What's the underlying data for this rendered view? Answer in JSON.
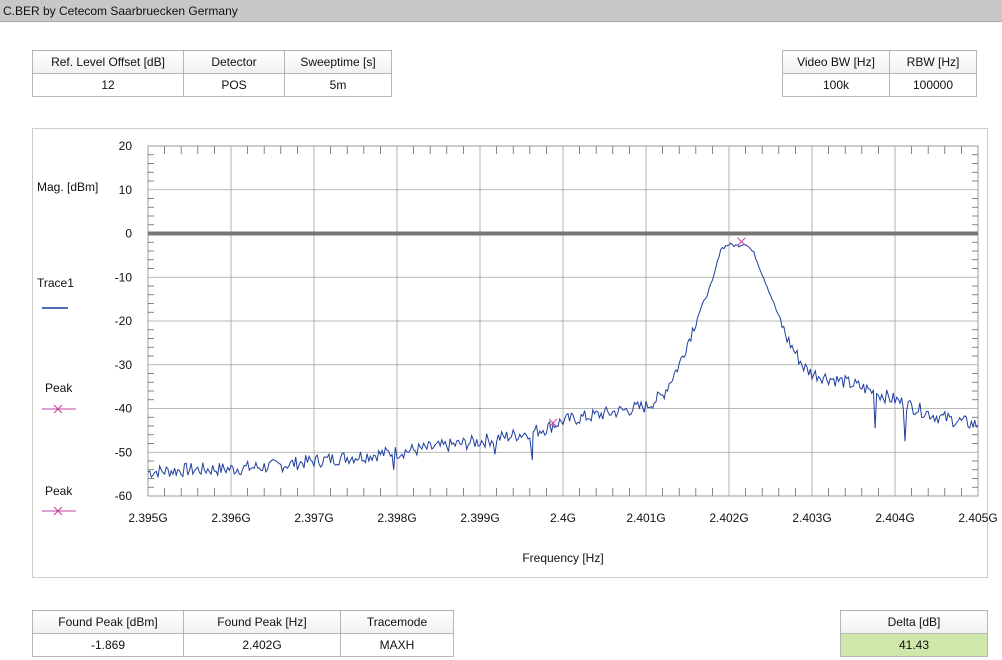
{
  "window": {
    "title": "C.BER by Cetecom Saarbruecken Germany"
  },
  "top_params_left": {
    "headers": [
      "Ref. Level Offset [dB]",
      "Detector",
      "Sweeptime [s]"
    ],
    "values": [
      "12",
      "POS",
      "5m"
    ]
  },
  "top_params_right": {
    "headers": [
      "Video BW [Hz]",
      "RBW [Hz]"
    ],
    "values": [
      "100k",
      "100000"
    ]
  },
  "bottom_params": {
    "headers": [
      "Found Peak [dBm]",
      "Found Peak [Hz]",
      "Tracemode"
    ],
    "values": [
      "-1.869",
      "2.402G",
      "MAXH"
    ]
  },
  "delta": {
    "header": "Delta [dB]",
    "value": "41.43",
    "color": "#cfe7a8"
  },
  "legend": {
    "trace1": "Trace1",
    "peak1": "Peak",
    "peak2": "Peak"
  },
  "colors": {
    "trace": "#1f3f9f",
    "peak_marker": "#c040a0",
    "ref_line": "#777777",
    "grid": "#a0a0a0"
  },
  "chart_data": {
    "type": "line",
    "xlabel": "Frequency [Hz]",
    "ylabel": "Mag. [dBm]",
    "xlim": [
      2.395,
      2.405
    ],
    "ylim": [
      -60,
      20
    ],
    "x_ticks": [
      2.395,
      2.396,
      2.397,
      2.398,
      2.399,
      2.4,
      2.401,
      2.402,
      2.403,
      2.404,
      2.405
    ],
    "x_tick_labels": [
      "2.395G",
      "2.396G",
      "2.397G",
      "2.398G",
      "2.399G",
      "2.4G",
      "2.401G",
      "2.402G",
      "2.403G",
      "2.404G",
      "2.405G"
    ],
    "y_ticks": [
      20,
      10,
      0,
      -10,
      -20,
      -30,
      -40,
      -50,
      -60
    ],
    "y_tick_labels": [
      "20",
      "10",
      "0",
      "-10",
      "-20",
      "-30",
      "-40",
      "-50",
      "-60"
    ],
    "grid": true,
    "reference_line": {
      "y": 0
    },
    "series": [
      {
        "name": "Trace1",
        "x": [
          2.395,
          2.3955,
          2.396,
          2.3965,
          2.397,
          2.3975,
          2.398,
          2.3985,
          2.399,
          2.3995,
          2.3998,
          2.4,
          2.4005,
          2.401,
          2.4012,
          2.4014,
          2.4016,
          2.4018,
          2.4019,
          2.402,
          2.4021,
          2.4022,
          2.4023,
          2.4025,
          2.4027,
          2.4029,
          2.403,
          2.4035,
          2.404,
          2.4045,
          2.405
        ],
        "y": [
          -54.5,
          -54,
          -53.8,
          -53.2,
          -52,
          -51,
          -50,
          -48.8,
          -47.5,
          -45.8,
          -44.5,
          -42.8,
          -41.2,
          -39.5,
          -37,
          -30,
          -20,
          -11,
          -3.5,
          -2.5,
          -2.8,
          -2.2,
          -4.5,
          -14,
          -24,
          -30.5,
          -32,
          -34.5,
          -38,
          -41.8,
          -43.8
        ]
      }
    ],
    "dips": [
      {
        "x": 2.39796,
        "y": -54
      },
      {
        "x": 2.39918,
        "y": -50.5
      },
      {
        "x": 2.39963,
        "y": -51.8
      },
      {
        "x": 2.40376,
        "y": -44.5
      },
      {
        "x": 2.40412,
        "y": -47.5
      }
    ],
    "peak_markers": [
      {
        "x": 2.40215,
        "y": -1.869
      },
      {
        "x": 2.39988,
        "y": -43.3
      }
    ]
  }
}
